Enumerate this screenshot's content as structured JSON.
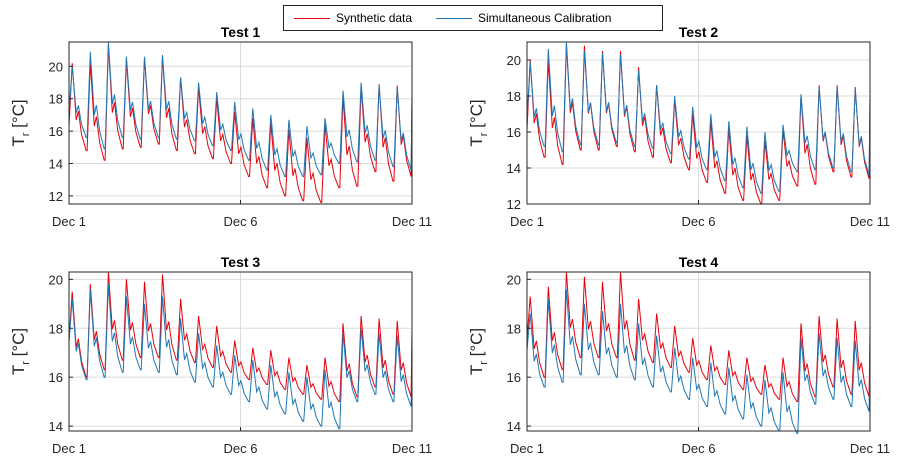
{
  "legend": {
    "synthetic_label": "Synthetic data",
    "calibration_label": "Simultaneous Calibration",
    "synthetic_color": "#e8000b",
    "calibration_color": "#1f77b4"
  },
  "chart_data": [
    {
      "type": "line",
      "title": "Test 1",
      "ylabel": "T_r [°C]",
      "xlim": [
        "Dec 1",
        "Dec 11"
      ],
      "ylim": [
        11.5,
        21.5
      ],
      "xticks": [
        "Dec 1",
        "Dec 6",
        "Dec 11"
      ],
      "yticks": [
        12,
        14,
        16,
        18,
        20
      ],
      "grid": true,
      "legend": "top-center",
      "series": [
        {
          "name": "Synthetic data",
          "peaks": [
            20.2,
            20.2,
            21.3,
            20.4,
            20.5,
            20.6,
            19.3,
            18.7,
            18.0,
            17.2,
            16.8,
            16.5,
            16.1,
            15.6,
            16.4,
            18.1,
            18.7,
            18.9,
            18.8
          ],
          "troughs": [
            14.8,
            14.2,
            14.9,
            15.0,
            15.2,
            14.8,
            14.6,
            14.3,
            14.0,
            13.2,
            12.5,
            12.0,
            11.7,
            11.6,
            12.5,
            12.6,
            13.5,
            12.9,
            13.2
          ]
        },
        {
          "name": "Simultaneous Calibration",
          "peaks": [
            20.0,
            20.9,
            21.5,
            20.6,
            20.6,
            20.7,
            19.3,
            19.0,
            18.4,
            17.8,
            17.4,
            17.0,
            16.7,
            16.3,
            16.8,
            18.5,
            19.0,
            18.8,
            18.7
          ],
          "troughs": [
            15.6,
            14.9,
            15.6,
            15.5,
            15.6,
            15.5,
            15.4,
            15.1,
            14.8,
            14.2,
            13.6,
            13.2,
            13.2,
            13.3,
            14.0,
            14.1,
            14.2,
            13.8,
            13.6
          ]
        }
      ]
    },
    {
      "type": "line",
      "title": "Test 2",
      "ylabel": "T_r [°C]",
      "xlim": [
        "Dec 1",
        "Dec 11"
      ],
      "ylim": [
        12,
        21
      ],
      "xticks": [
        "Dec 1",
        "Dec 6",
        "Dec 11"
      ],
      "yticks": [
        12,
        14,
        16,
        18,
        20
      ],
      "grid": true,
      "series": [
        {
          "name": "Synthetic data",
          "peaks": [
            20.0,
            20.0,
            20.9,
            20.8,
            20.5,
            20.5,
            19.6,
            18.6,
            17.8,
            17.0,
            16.6,
            16.2,
            15.8,
            15.5,
            16.1,
            18.0,
            18.6,
            18.6,
            18.5
          ],
          "troughs": [
            14.6,
            14.2,
            15.0,
            15.0,
            15.2,
            14.9,
            14.6,
            14.3,
            13.9,
            13.2,
            12.6,
            12.2,
            12.0,
            12.2,
            13.0,
            13.1,
            13.8,
            13.5,
            13.4
          ]
        },
        {
          "name": "Simultaneous Calibration",
          "peaks": [
            19.9,
            20.6,
            21.0,
            20.5,
            20.4,
            20.3,
            19.4,
            18.6,
            18.0,
            17.4,
            17.0,
            16.6,
            16.3,
            16.0,
            16.4,
            18.1,
            18.5,
            18.5,
            18.4
          ],
          "troughs": [
            15.2,
            14.9,
            15.3,
            15.3,
            15.4,
            15.2,
            15.1,
            14.8,
            14.5,
            13.9,
            13.3,
            12.9,
            12.6,
            12.7,
            13.8,
            13.9,
            14.0,
            13.8,
            13.6
          ]
        }
      ]
    },
    {
      "type": "line",
      "title": "Test 3",
      "ylabel": "T_r [°C]",
      "xlim": [
        "Dec 1",
        "Dec 11"
      ],
      "ylim": [
        13.8,
        20.3
      ],
      "xticks": [
        "Dec 1",
        "Dec 6",
        "Dec 11"
      ],
      "yticks": [
        14,
        16,
        18,
        20
      ],
      "grid": true,
      "series": [
        {
          "name": "Synthetic data",
          "peaks": [
            19.5,
            19.8,
            20.3,
            20.0,
            19.9,
            20.2,
            19.2,
            18.5,
            18.1,
            17.5,
            17.2,
            17.1,
            16.8,
            16.5,
            16.8,
            18.2,
            18.5,
            18.4,
            18.3
          ],
          "troughs": [
            16.0,
            16.3,
            16.7,
            16.8,
            16.8,
            16.7,
            16.6,
            16.4,
            16.2,
            15.9,
            15.7,
            15.5,
            15.3,
            15.1,
            15.0,
            15.2,
            15.6,
            15.3,
            15.2
          ]
        },
        {
          "name": "Simultaneous Calibration",
          "peaks": [
            19.2,
            19.6,
            19.8,
            19.3,
            19.0,
            19.3,
            18.4,
            17.8,
            17.3,
            16.9,
            16.7,
            16.5,
            16.2,
            16.0,
            16.3,
            17.8,
            18.0,
            17.8,
            17.7
          ],
          "troughs": [
            15.9,
            16.0,
            16.2,
            16.3,
            16.2,
            16.1,
            15.8,
            15.6,
            15.3,
            15.0,
            14.7,
            14.5,
            14.2,
            14.0,
            13.9,
            15.0,
            15.3,
            15.0,
            14.8
          ]
        }
      ]
    },
    {
      "type": "line",
      "title": "Test 4",
      "ylabel": "T_r [°C]",
      "xlim": [
        "Dec 1",
        "Dec 11"
      ],
      "ylim": [
        13.8,
        20.3
      ],
      "xticks": [
        "Dec 1",
        "Dec 6",
        "Dec 11"
      ],
      "yticks": [
        14,
        16,
        18,
        20
      ],
      "grid": true,
      "series": [
        {
          "name": "Synthetic data",
          "peaks": [
            19.3,
            19.7,
            20.3,
            20.1,
            19.9,
            20.3,
            19.2,
            18.6,
            18.1,
            17.6,
            17.3,
            17.1,
            16.8,
            16.5,
            16.8,
            18.2,
            18.5,
            18.4,
            18.3
          ],
          "troughs": [
            16.0,
            16.3,
            16.8,
            16.8,
            16.8,
            16.7,
            16.6,
            16.4,
            16.2,
            15.9,
            15.7,
            15.5,
            15.3,
            15.1,
            15.0,
            15.2,
            15.6,
            15.3,
            15.2
          ]
        },
        {
          "name": "Simultaneous Calibration",
          "peaks": [
            18.6,
            19.2,
            19.6,
            19.0,
            18.7,
            19.0,
            18.2,
            17.7,
            17.2,
            16.8,
            16.6,
            16.4,
            16.1,
            15.9,
            16.2,
            17.6,
            17.8,
            17.6,
            17.5
          ],
          "troughs": [
            15.6,
            15.8,
            16.1,
            16.1,
            16.0,
            15.9,
            15.6,
            15.4,
            15.1,
            14.8,
            14.5,
            14.3,
            14.0,
            13.8,
            13.7,
            14.9,
            15.1,
            14.8,
            14.6
          ]
        }
      ]
    }
  ]
}
